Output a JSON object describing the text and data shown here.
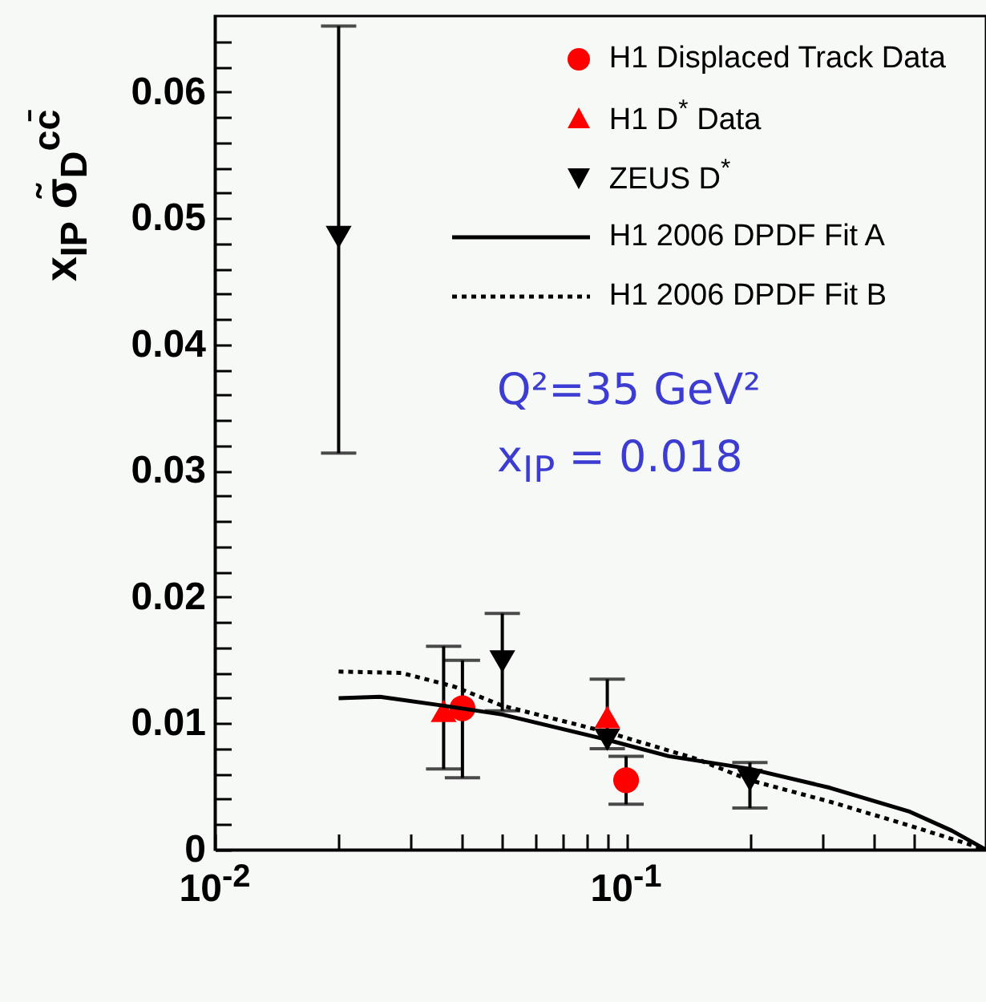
{
  "chart_data": {
    "type": "scatter",
    "ylabel": "x$_{IP}$ σ̃$_{D}$$^{cc̄}$",
    "legend": "top right",
    "xlim": [
      0.01,
      0.75
    ],
    "ylim": [
      0,
      0.066
    ],
    "log": "x",
    "xticks": [
      {
        "value": 0.01,
        "label": "10$^{-2}$"
      },
      {
        "value": 0.02,
        "label": null
      },
      {
        "value": 0.03,
        "label": null
      },
      {
        "value": 0.04,
        "label": null
      },
      {
        "value": 0.05,
        "label": null
      },
      {
        "value": 0.06,
        "label": null
      },
      {
        "value": 0.07,
        "label": null
      },
      {
        "value": 0.08,
        "label": null
      },
      {
        "value": 0.09,
        "label": null
      },
      {
        "value": 0.1,
        "label": "10$^{-1}$"
      },
      {
        "value": 0.2,
        "label": null
      },
      {
        "value": 0.3,
        "label": null
      },
      {
        "value": 0.4,
        "label": null
      },
      {
        "value": 0.5,
        "label": null
      }
    ],
    "yticks": [
      0,
      {
        "value": 0.002,
        "label": null
      },
      {
        "value": 0.004,
        "label": null
      },
      {
        "value": 0.006,
        "label": null
      },
      {
        "value": 0.008,
        "label": null
      },
      0.01,
      {
        "value": 0.012,
        "label": null
      },
      {
        "value": 0.014,
        "label": null
      },
      {
        "value": 0.016,
        "label": null
      },
      {
        "value": 0.018,
        "label": null
      },
      0.02,
      {
        "value": 0.022,
        "label": null
      },
      {
        "value": 0.024,
        "label": null
      },
      {
        "value": 0.026,
        "label": null
      },
      {
        "value": 0.028,
        "label": null
      },
      0.03,
      {
        "value": 0.032,
        "label": null
      },
      {
        "value": 0.034,
        "label": null
      },
      {
        "value": 0.036,
        "label": null
      },
      {
        "value": 0.038,
        "label": null
      },
      0.04,
      {
        "value": 0.042,
        "label": null
      },
      {
        "value": 0.044,
        "label": null
      },
      {
        "value": 0.046,
        "label": null
      },
      {
        "value": 0.048,
        "label": null
      },
      0.05,
      {
        "value": 0.052,
        "label": null
      },
      {
        "value": 0.054,
        "label": null
      },
      {
        "value": 0.056,
        "label": null
      },
      {
        "value": 0.058,
        "label": null
      },
      0.06,
      {
        "value": 0.062,
        "label": null
      },
      {
        "value": 0.064,
        "label": null
      }
    ],
    "annotations": [
      "Q²=35 GeV²",
      "x$_{IP}$ = 0.018"
    ],
    "series": [
      {
        "name": "H1 Displaced Track Data",
        "color": "#ff0000",
        "marker": "circle",
        "x": [
          0.04,
          0.1
        ],
        "values": [
          0.0112,
          0.0055
        ],
        "errors": [
          [
            0.0057,
            0.015
          ],
          [
            0.0036,
            0.0074
          ]
        ]
      },
      {
        "name": "H1 D$^{*}$ Data",
        "color": "#ff0000",
        "marker": "triangle",
        "x": [
          0.036,
          0.09
        ],
        "values": [
          0.011,
          0.0105
        ],
        "errors": [
          [
            0.0064,
            0.0161
          ],
          [
            0.008,
            0.0135
          ]
        ]
      },
      {
        "name": "ZEUS D$^{*}$",
        "color": "#000000",
        "marker": "triangle-down",
        "x": [
          0.02,
          0.05,
          0.09,
          0.2
        ],
        "values": [
          0.0485,
          0.0149,
          0.0087,
          0.0055
        ],
        "errors": [
          [
            0.0314,
            0.0652
          ],
          [
            0.011,
            0.0187
          ],
          null,
          [
            0.0033,
            0.0069
          ]
        ]
      },
      {
        "name": "H1 2006 DPDF Fit A",
        "type": "line",
        "color": "#000000",
        "line_style": "solid",
        "x": [
          0.02,
          0.0252,
          0.036,
          0.05,
          0.09,
          0.127,
          0.2,
          0.313,
          0.49,
          0.62,
          0.75
        ],
        "values": [
          0.012,
          0.0121,
          0.0114,
          0.0107,
          0.0087,
          0.0074,
          0.0064,
          0.0049,
          0.003,
          0.0015,
          0
        ]
      },
      {
        "name": "H1 2006 DPDF Fit B",
        "type": "line",
        "color": "#000000",
        "line_style": "dotted",
        "x": [
          0.02,
          0.0284,
          0.0383,
          0.05,
          0.09,
          0.148,
          0.2,
          0.313,
          0.49,
          0.75
        ],
        "values": [
          0.0141,
          0.014,
          0.0129,
          0.0114,
          0.0093,
          0.0072,
          0.0055,
          0.0038,
          0.0019,
          0
        ]
      }
    ]
  }
}
